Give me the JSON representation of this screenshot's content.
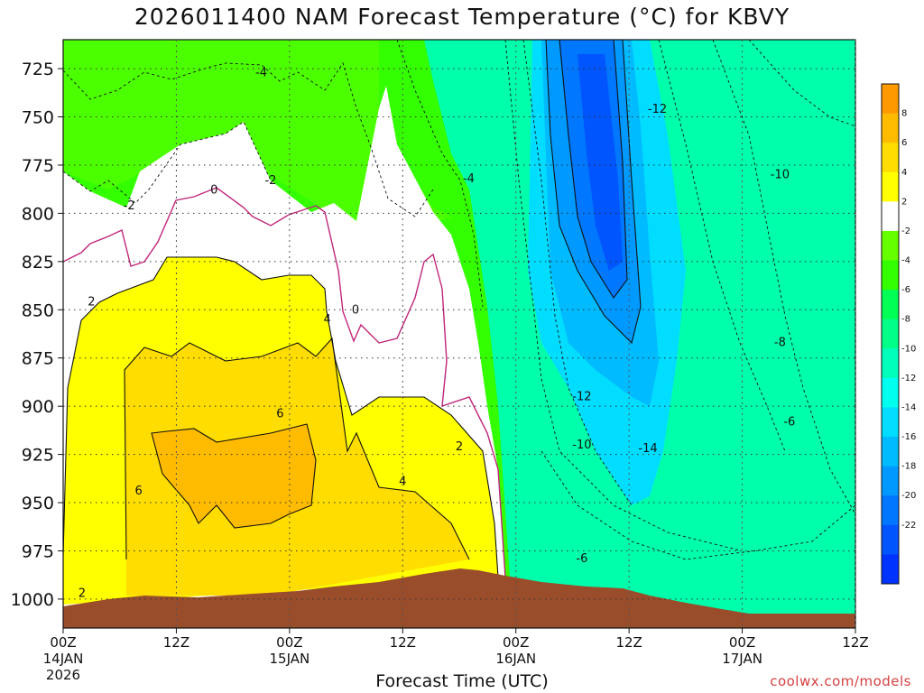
{
  "title": "2026011400 NAM Forecast Temperature (°C) for KBVY",
  "xlabel": "Forecast Time (UTC)",
  "credit": "coolwx.com/models",
  "colors": {
    "ground": "#9a4d2b",
    "freezing_line": "#c0267a",
    "scale": [
      "#0033ff",
      "#0055ff",
      "#0077ff",
      "#0099ff",
      "#00bbff",
      "#00ddff",
      "#00ffee",
      "#00ffbb",
      "#00ff88",
      "#00ff55",
      "#33ff00",
      "#66ff00",
      "#ffffff",
      "#ffff00",
      "#ffdd00",
      "#ffbb00",
      "#ff9900"
    ]
  },
  "chart_data": {
    "type": "heatmap",
    "title": "2026011400 NAM Forecast Temperature (°C) for KBVY",
    "xlabel": "Forecast Time (UTC)",
    "ylabel": "",
    "y_ticks": [
      "725",
      "750",
      "775",
      "800",
      "825",
      "850",
      "875",
      "900",
      "925",
      "950",
      "975",
      "1000"
    ],
    "ylim": [
      1015,
      710
    ],
    "x_ticks": [
      {
        "time": "00Z",
        "date": "14JAN",
        "year": "2026"
      },
      {
        "time": "12Z",
        "date": "",
        "year": ""
      },
      {
        "time": "00Z",
        "date": "15JAN",
        "year": ""
      },
      {
        "time": "12Z",
        "date": "",
        "year": ""
      },
      {
        "time": "00Z",
        "date": "16JAN",
        "year": ""
      },
      {
        "time": "12Z",
        "date": "",
        "year": ""
      },
      {
        "time": "00Z",
        "date": "17JAN",
        "year": ""
      },
      {
        "time": "12Z",
        "date": "",
        "year": ""
      }
    ],
    "xlim_hours": [
      0,
      84
    ],
    "grid": true,
    "legend": "right",
    "colorbar_labels": [
      "8",
      "6",
      "4",
      "2",
      "-2",
      "-4",
      "-6",
      "-8",
      "-10",
      "-12",
      "-14",
      "-16",
      "-18",
      "-20",
      "-22"
    ],
    "contour_labels": [
      {
        "text": "-4",
        "hour": 21.0,
        "p": 727
      },
      {
        "text": "-2",
        "hour": 22.0,
        "p": 783
      },
      {
        "text": "-2",
        "hour": 7.0,
        "p": 796
      },
      {
        "text": "-4",
        "hour": 43.0,
        "p": 782
      },
      {
        "text": "0",
        "hour": 16.0,
        "p": 788
      },
      {
        "text": "0",
        "hour": 31.0,
        "p": 850
      },
      {
        "text": "2",
        "hour": 3.0,
        "p": 846
      },
      {
        "text": "2",
        "hour": 42.0,
        "p": 921
      },
      {
        "text": "2",
        "hour": 2.0,
        "p": 997
      },
      {
        "text": "4",
        "hour": 28.0,
        "p": 855
      },
      {
        "text": "4",
        "hour": 36.0,
        "p": 939
      },
      {
        "text": "6",
        "hour": 23.0,
        "p": 904
      },
      {
        "text": "6",
        "hour": 8.0,
        "p": 944
      },
      {
        "text": "-12",
        "hour": 63.0,
        "p": 746
      },
      {
        "text": "-12",
        "hour": 55.0,
        "p": 895
      },
      {
        "text": "-10",
        "hour": 55.0,
        "p": 920
      },
      {
        "text": "-14",
        "hour": 62.0,
        "p": 922
      },
      {
        "text": "-10",
        "hour": 76.0,
        "p": 780
      },
      {
        "text": "-8",
        "hour": 76.0,
        "p": 867
      },
      {
        "text": "-6",
        "hour": 77.0,
        "p": 908
      },
      {
        "text": "-6",
        "hour": 55.0,
        "p": 979
      }
    ]
  }
}
